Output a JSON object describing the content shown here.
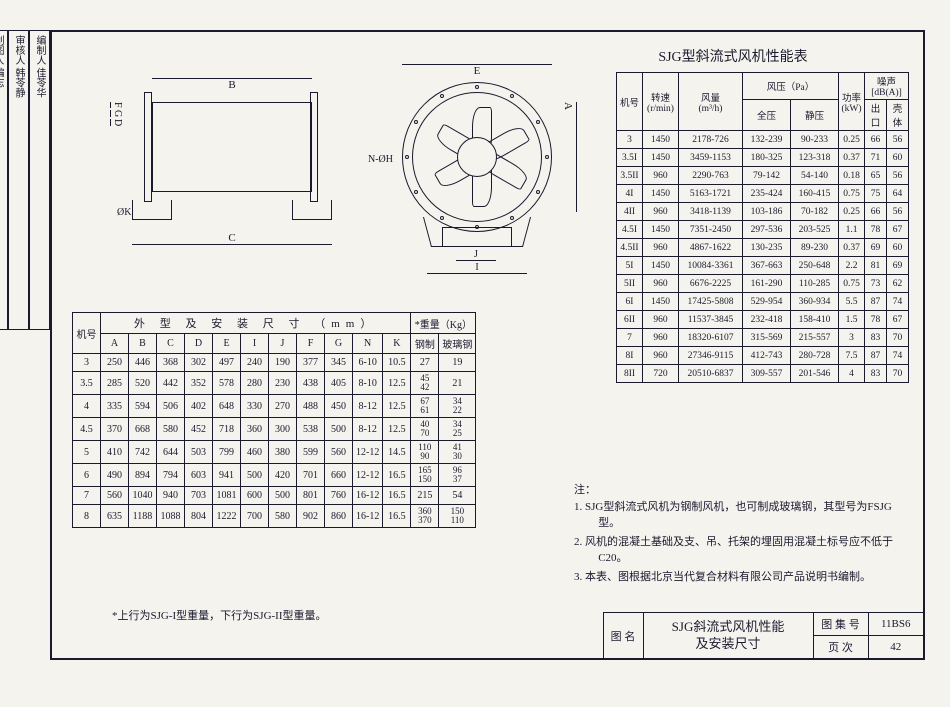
{
  "sideband": [
    "编制人 佳苓华",
    "审核人 韩苓静",
    "制图人 编志"
  ],
  "perf_title": "SJG型斜流式风机性能表",
  "drawing": {
    "dims": {
      "B": "B",
      "C": "C",
      "E": "E",
      "A": "A",
      "F": "F",
      "G": "G",
      "D": "D",
      "NH": "N-ØH",
      "J": "J",
      "I": "I",
      "K": "ØK"
    }
  },
  "dim_table": {
    "header_main": "外 型 及 安 装 尺 寸 （mm）",
    "weight_hdr": "*重量（Kg）",
    "col_label": "机号",
    "cols": [
      "A",
      "B",
      "C",
      "D",
      "E",
      "I",
      "J",
      "F",
      "G",
      "N",
      "K",
      "钢制",
      "玻璃钢"
    ],
    "rows": [
      {
        "m": "3",
        "v": [
          "250",
          "446",
          "368",
          "302",
          "497",
          "240",
          "190",
          "377",
          "345",
          "6-10",
          "10.5",
          "27",
          "19"
        ]
      },
      {
        "m": "3.5",
        "v": [
          "285",
          "520",
          "442",
          "352",
          "578",
          "280",
          "230",
          "438",
          "405",
          "8-10",
          "12.5",
          "45\n42",
          "21"
        ]
      },
      {
        "m": "4",
        "v": [
          "335",
          "594",
          "506",
          "402",
          "648",
          "330",
          "270",
          "488",
          "450",
          "8-12",
          "12.5",
          "67\n61",
          "34\n22"
        ]
      },
      {
        "m": "4.5",
        "v": [
          "370",
          "668",
          "580",
          "452",
          "718",
          "360",
          "300",
          "538",
          "500",
          "8-12",
          "12.5",
          "40\n70",
          "34\n25"
        ]
      },
      {
        "m": "5",
        "v": [
          "410",
          "742",
          "644",
          "503",
          "799",
          "460",
          "380",
          "599",
          "560",
          "12-12",
          "14.5",
          "110\n90",
          "41\n30"
        ]
      },
      {
        "m": "6",
        "v": [
          "490",
          "894",
          "794",
          "603",
          "941",
          "500",
          "420",
          "701",
          "660",
          "12-12",
          "16.5",
          "165\n150",
          "96\n37"
        ]
      },
      {
        "m": "7",
        "v": [
          "560",
          "1040",
          "940",
          "703",
          "1081",
          "600",
          "500",
          "801",
          "760",
          "16-12",
          "16.5",
          "215",
          "54"
        ]
      },
      {
        "m": "8",
        "v": [
          "635",
          "1188",
          "1088",
          "804",
          "1222",
          "700",
          "580",
          "902",
          "860",
          "16-12",
          "16.5",
          "360\n370",
          "150\n110"
        ]
      }
    ]
  },
  "footnote1": "*上行为SJG-I型重量，下行为SJG-II型重量。",
  "perf_table": {
    "cols": {
      "m": "机号",
      "spd": "转速\n(r/min)",
      "vol": "风量\n(m³/h)",
      "press": "风压（Pa）",
      "full": "全压",
      "static": "静压",
      "pow": "功率\n(kW)",
      "noise": "噪声[dB(A)]",
      "out": "出口",
      "body": "壳体"
    },
    "rows": [
      [
        "3",
        "1450",
        "2178-726",
        "132-239",
        "90-233",
        "0.25",
        "66",
        "56"
      ],
      [
        "3.5I",
        "1450",
        "3459-1153",
        "180-325",
        "123-318",
        "0.37",
        "71",
        "60"
      ],
      [
        "3.5II",
        "960",
        "2290-763",
        "79-142",
        "54-140",
        "0.18",
        "65",
        "56"
      ],
      [
        "4I",
        "1450",
        "5163-1721",
        "235-424",
        "160-415",
        "0.75",
        "75",
        "64"
      ],
      [
        "4II",
        "960",
        "3418-1139",
        "103-186",
        "70-182",
        "0.25",
        "66",
        "56"
      ],
      [
        "4.5I",
        "1450",
        "7351-2450",
        "297-536",
        "203-525",
        "1.1",
        "78",
        "67"
      ],
      [
        "4.5II",
        "960",
        "4867-1622",
        "130-235",
        "89-230",
        "0.37",
        "69",
        "60"
      ],
      [
        "5I",
        "1450",
        "10084-3361",
        "367-663",
        "250-648",
        "2.2",
        "81",
        "69"
      ],
      [
        "5II",
        "960",
        "6676-2225",
        "161-290",
        "110-285",
        "0.75",
        "73",
        "62"
      ],
      [
        "6I",
        "1450",
        "17425-5808",
        "529-954",
        "360-934",
        "5.5",
        "87",
        "74"
      ],
      [
        "6II",
        "960",
        "11537-3845",
        "232-418",
        "158-410",
        "1.5",
        "78",
        "67"
      ],
      [
        "7",
        "960",
        "18320-6107",
        "315-569",
        "215-557",
        "3",
        "83",
        "70"
      ],
      [
        "8I",
        "960",
        "27346-9115",
        "412-743",
        "280-728",
        "7.5",
        "87",
        "74"
      ],
      [
        "8II",
        "720",
        "20510-6837",
        "309-557",
        "201-546",
        "4",
        "83",
        "70"
      ]
    ]
  },
  "notes": {
    "lead": "注：",
    "items": [
      "1. SJG型斜流式风机为钢制风机，也可制成玻璃钢，其型号为FSJG型。",
      "2. 风机的混凝土基础及支、吊、托架的埋固用混凝土标号应不低于C20。",
      "3. 本表、图根据北京当代复合材料有限公司产品说明书编制。"
    ]
  },
  "title_block": {
    "name_lbl": "图 名",
    "name": "SJG斜流式风机性能\n及安装尺寸",
    "book_lbl": "图 集 号",
    "book": "11BS6",
    "page_lbl": "页  次",
    "page": "42"
  }
}
